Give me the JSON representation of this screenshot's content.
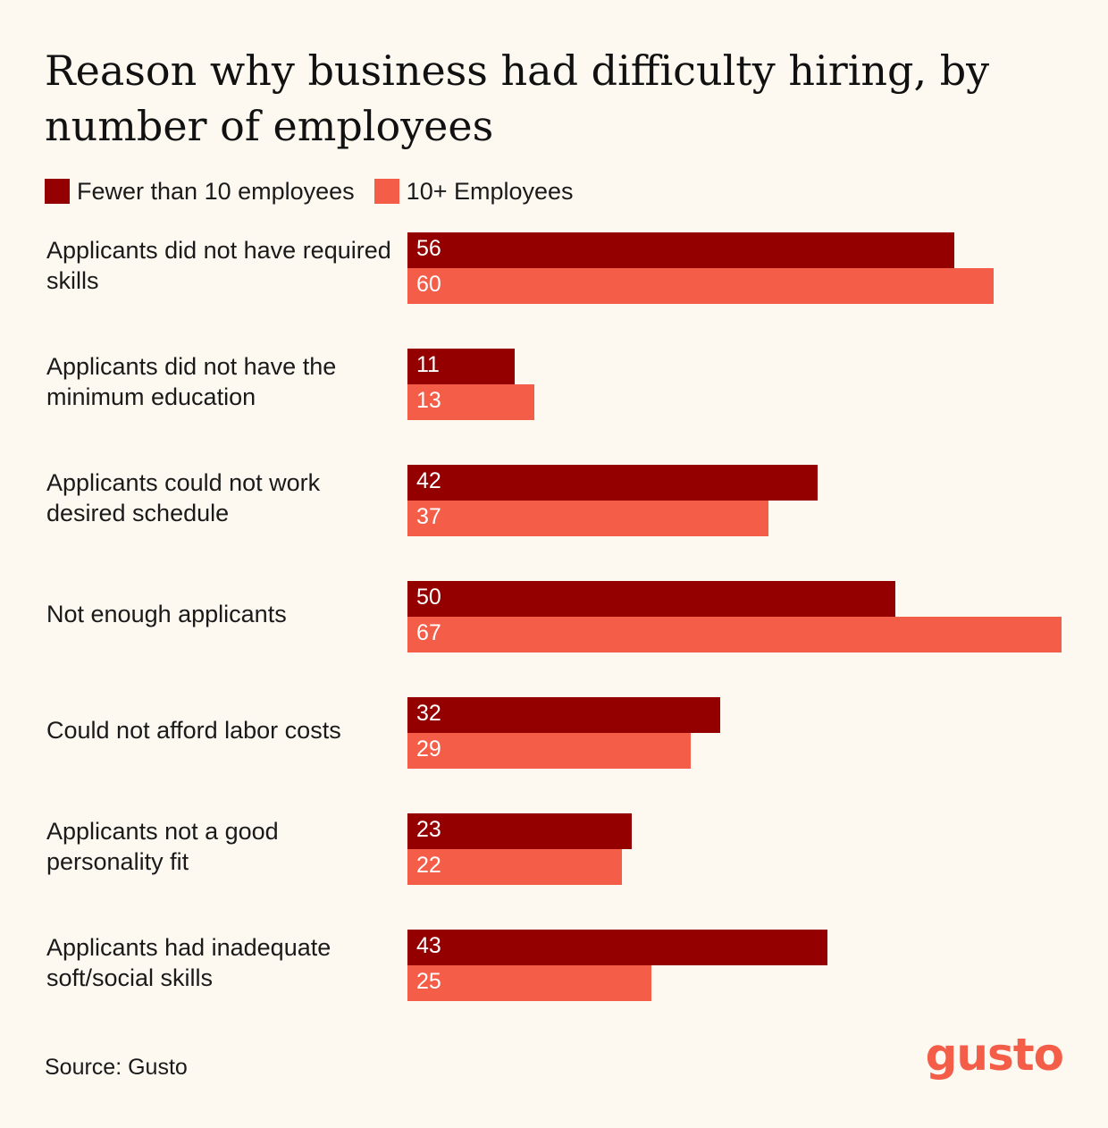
{
  "colors": {
    "background": "#fdf9f1",
    "series_small": "#940000",
    "series_large": "#f45d48",
    "text": "#1a1a1a",
    "bar_text": "#ffffff"
  },
  "footer": {
    "source": "Source: Gusto",
    "logo_text": "gusto"
  },
  "chart_data": {
    "type": "bar",
    "orientation": "horizontal",
    "title": "Reason why business had difficulty hiring, by number of employees",
    "xlabel": "",
    "ylabel": "",
    "xlim": [
      0,
      67
    ],
    "grid": false,
    "legend_position": "top-left",
    "categories": [
      "Applicants did not have required skills",
      "Applicants did not have the minimum education",
      "Applicants could not work desired schedule",
      "Not enough applicants",
      "Could not afford labor costs",
      "Applicants not a good personality fit",
      "Applicants had inadequate soft/social skills"
    ],
    "series": [
      {
        "name": "Fewer than 10 employees",
        "color": "#940000",
        "values": [
          56,
          11,
          42,
          50,
          32,
          23,
          43
        ]
      },
      {
        "name": "10+ Employees",
        "color": "#f45d48",
        "values": [
          60,
          13,
          37,
          67,
          29,
          22,
          25
        ]
      }
    ]
  }
}
